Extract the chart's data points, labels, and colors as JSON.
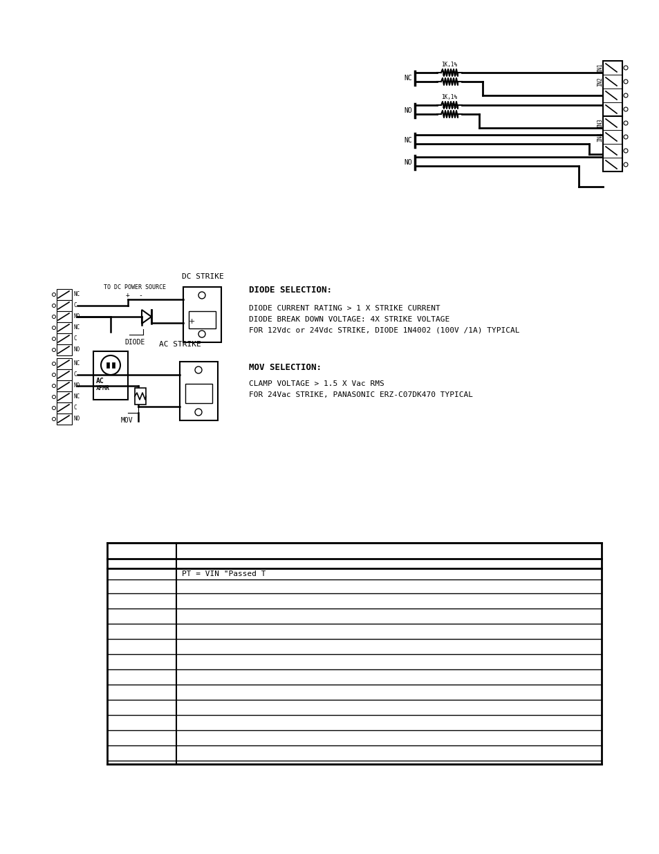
{
  "bg_color": "#ffffff",
  "diode_section": {
    "title": "DIODE SELECTION:",
    "lines": [
      "DIODE CURRENT RATING > 1 X STRIKE CURRENT",
      "DIODE BREAK DOWN VOLTAGE: 4X STRIKE VOLTAGE",
      "FOR 12Vdc or 24Vdc STRIKE, DIODE 1N4002 (100V /1A) TYPICAL"
    ]
  },
  "mov_section": {
    "title": "MOV SELECTION:",
    "lines": [
      "CLAMP VOLTAGE > 1.5 X Vac RMS",
      "FOR 24Vac STRIKE, PANASONIC ERZ-C07DK470 TYPICAL"
    ]
  },
  "table_text": "PT = VIN \"Passed T",
  "top_diagram": {
    "nc1_label": "NC",
    "no1_label": "NO",
    "nc2_label": "NC",
    "no2_label": "NO",
    "res_labels": [
      "1K,1%",
      "1K,1%",
      "1K,1%",
      "1K,1%"
    ],
    "in_labels": [
      "IN1",
      "IN2",
      "IN3",
      "IN4"
    ]
  },
  "dc_diagram": {
    "title": "DC STRIKE",
    "source_label": "TO DC POWER SOURCE",
    "diode_label": "DIODE",
    "pm_labels": [
      "+",
      "-"
    ],
    "plus_label": "+"
  },
  "ac_diagram": {
    "title": "AC STRIKE",
    "xfmr_labels": [
      "AC",
      "XFMR"
    ],
    "mov_label": "MOV"
  },
  "relay_labels": [
    "NC",
    "C",
    "NO",
    "NC",
    "C",
    "NO"
  ]
}
